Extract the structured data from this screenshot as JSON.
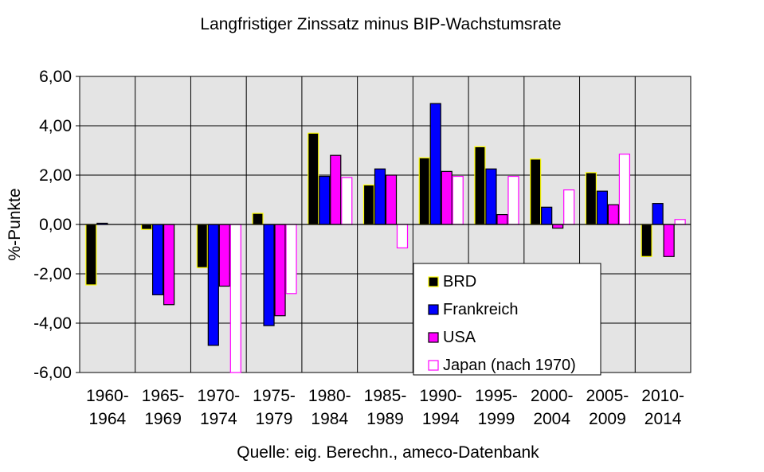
{
  "chart_data": {
    "type": "bar",
    "title": "Langfristiger Zinssatz minus BIP-Wachstumsrate",
    "ylabel": "%-Punkte",
    "source": "Quelle: eig. Berechn., ameco-Datenbank",
    "ylim": [
      -6,
      6
    ],
    "yticks": [
      6,
      4,
      2,
      0,
      -2,
      -4,
      -6
    ],
    "ytick_labels": [
      "6,00",
      "4,00",
      "2,00",
      "0,00",
      "-2,00",
      "-4,00",
      "-6,00"
    ],
    "categories": [
      [
        "1960-",
        "1964"
      ],
      [
        "1965-",
        "1969"
      ],
      [
        "1970-",
        "1974"
      ],
      [
        "1975-",
        "1979"
      ],
      [
        "1980-",
        "1984"
      ],
      [
        "1985-",
        "1989"
      ],
      [
        "1990-",
        "1994"
      ],
      [
        "1995-",
        "1999"
      ],
      [
        "2000-",
        "2004"
      ],
      [
        "2005-",
        "2009"
      ],
      [
        "2010-",
        "2014"
      ]
    ],
    "grid": true,
    "legend_position": "bottom-right",
    "series": [
      {
        "name": "BRD",
        "color": "#000000",
        "edge": "#ffff00",
        "values": [
          -2.45,
          -0.2,
          -1.75,
          0.45,
          3.7,
          1.6,
          2.7,
          3.15,
          2.65,
          2.1,
          -1.3
        ]
      },
      {
        "name": "Frankreich",
        "color": "#0000ff",
        "edge": "#000000",
        "values": [
          0.05,
          -2.85,
          -4.9,
          -4.1,
          1.95,
          2.25,
          4.9,
          2.25,
          0.7,
          1.35,
          0.85
        ]
      },
      {
        "name": "USA",
        "color": "#ff00ff",
        "edge": "#000000",
        "values": [
          null,
          -3.25,
          -2.5,
          -3.7,
          2.8,
          2.0,
          2.15,
          0.4,
          -0.15,
          0.8,
          -1.3
        ]
      },
      {
        "name": "Japan (nach 1970)",
        "color": "#ffffff",
        "edge": "#ff00ff",
        "values": [
          null,
          null,
          -6.0,
          -2.8,
          1.9,
          -0.95,
          1.95,
          1.95,
          1.4,
          2.85,
          0.2
        ]
      }
    ]
  }
}
